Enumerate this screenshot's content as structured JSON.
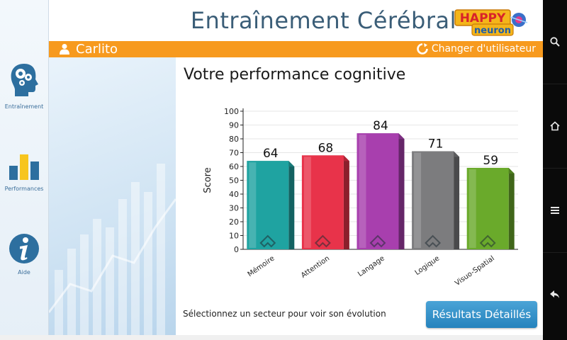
{
  "header": {
    "title": "Entraînement Cérébral",
    "logo_text_top": "HAPPY",
    "logo_text_bottom": "neuron"
  },
  "user_bar": {
    "user_name": "Carlito",
    "change_user_label": "Changer d'utilisateur"
  },
  "sidebar": {
    "items": [
      {
        "label": "Entraînement",
        "icon": "brain-gears-icon"
      },
      {
        "label": "Performances",
        "icon": "bar-chart-icon"
      },
      {
        "label": "Aide",
        "icon": "info-icon"
      }
    ]
  },
  "main": {
    "title": "Votre performance cognitive",
    "hint": "Sélectionnez un secteur pour voir son évolution",
    "details_button": "Résultats Détaillés"
  },
  "chart_data": {
    "type": "bar",
    "categories": [
      "Mémoire",
      "Attention",
      "Langage",
      "Logique",
      "Visuo-Spatial"
    ],
    "values": [
      64,
      68,
      84,
      71,
      59
    ],
    "colors": [
      "#1fa3a1",
      "#e8334a",
      "#a83fae",
      "#7c7c7e",
      "#6aaa2b"
    ],
    "ylabel": "Score",
    "ylim": [
      0,
      100
    ],
    "yticks": [
      0,
      10,
      20,
      30,
      40,
      50,
      60,
      70,
      80,
      90,
      100
    ],
    "grid": true
  },
  "navbar": {
    "icons": [
      "search-icon",
      "home-icon",
      "menu-icon",
      "back-icon"
    ]
  },
  "colors": {
    "accent": "#f79a1e",
    "button": "#2683bd",
    "title": "#3a5d77"
  }
}
